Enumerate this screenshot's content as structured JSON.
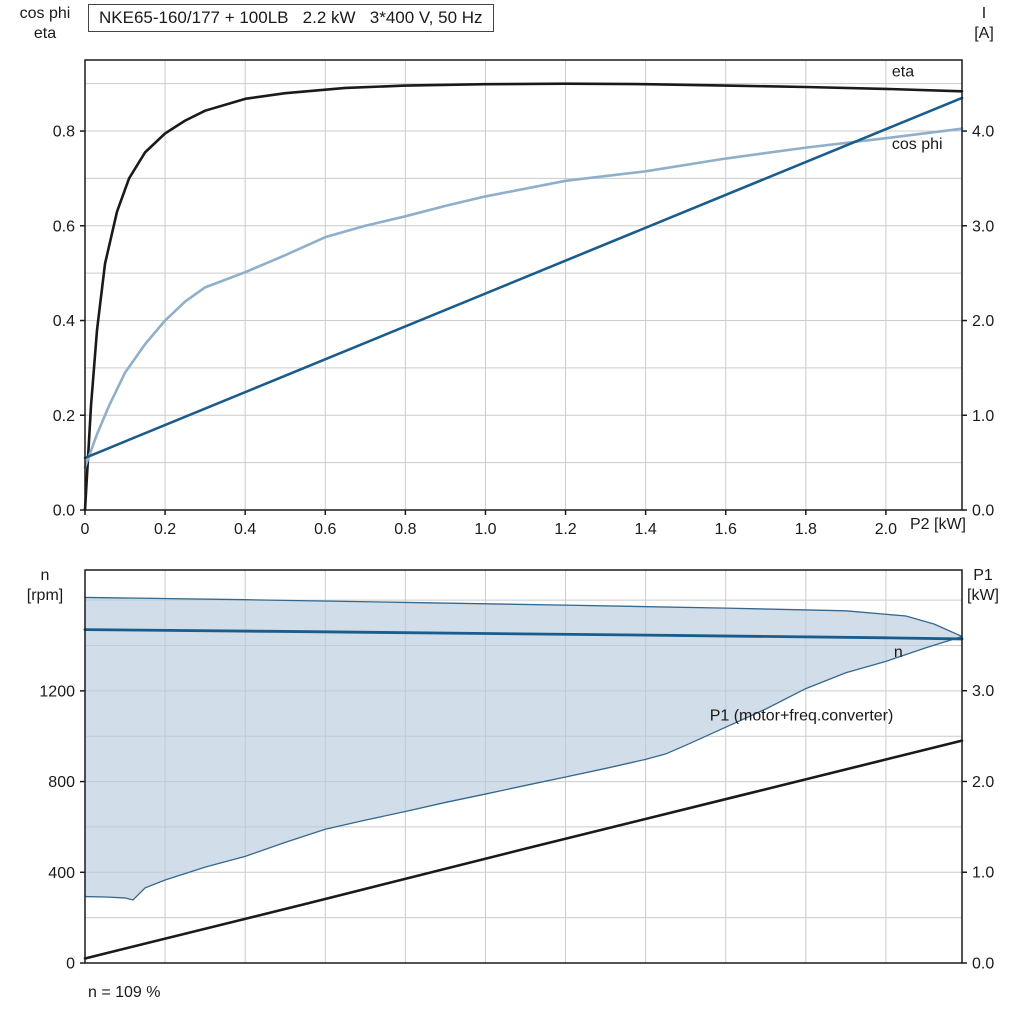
{
  "title": "NKE65-160/177 + 100LB   2.2 kW   3*400 V, 50 Hz",
  "colors": {
    "black": "#1a1a1a",
    "dark_blue": "#1a5c8c",
    "light_blue": "#8fafcb",
    "band_fill": "#b9cbdc",
    "band_edge": "#35688f",
    "grid": "#cccccc",
    "border": "#1a1a1a"
  },
  "chart_data": [
    {
      "type": "line",
      "panel": "top",
      "xlabel": "P2 [kW]",
      "y_left_label": "cos phi\neta",
      "y_right_label": "I\n[A]",
      "x_range": [
        0,
        2.19
      ],
      "y_left_range": [
        0,
        0.95
      ],
      "y_right_range": [
        0,
        4.75
      ],
      "x_grid": [
        0.2,
        0.4,
        0.6,
        0.8,
        1.0,
        1.2,
        1.4,
        1.6,
        1.8,
        2.0
      ],
      "y_grid_left": [
        0.1,
        0.2,
        0.3,
        0.4,
        0.5,
        0.6,
        0.7,
        0.8,
        0.9
      ],
      "x_ticks": [
        {
          "v": 0,
          "label": "0"
        },
        {
          "v": 0.2,
          "label": "0.2"
        },
        {
          "v": 0.4,
          "label": "0.4"
        },
        {
          "v": 0.6,
          "label": "0.6"
        },
        {
          "v": 0.8,
          "label": "0.8"
        },
        {
          "v": 1.0,
          "label": "1.0"
        },
        {
          "v": 1.2,
          "label": "1.2"
        },
        {
          "v": 1.4,
          "label": "1.4"
        },
        {
          "v": 1.6,
          "label": "1.6"
        },
        {
          "v": 1.8,
          "label": "1.8"
        },
        {
          "v": 2.0,
          "label": "2.0"
        }
      ],
      "y_left_ticks": [
        {
          "v": 0,
          "label": "0.0"
        },
        {
          "v": 0.2,
          "label": "0.2"
        },
        {
          "v": 0.4,
          "label": "0.4"
        },
        {
          "v": 0.6,
          "label": "0.6"
        },
        {
          "v": 0.8,
          "label": "0.8"
        }
      ],
      "y_right_ticks": [
        {
          "v": 0,
          "label": "0.0"
        },
        {
          "v": 1,
          "label": "1.0"
        },
        {
          "v": 2,
          "label": "2.0"
        },
        {
          "v": 3,
          "label": "3.0"
        },
        {
          "v": 4,
          "label": "4.0"
        }
      ],
      "series": [
        {
          "name": "eta",
          "axis": "left",
          "color": "#1a1a1a",
          "width": 2.6,
          "x": [
            0,
            0.015,
            0.03,
            0.05,
            0.08,
            0.11,
            0.15,
            0.2,
            0.25,
            0.3,
            0.4,
            0.5,
            0.65,
            0.8,
            1.0,
            1.2,
            1.4,
            1.6,
            1.8,
            2.0,
            2.19
          ],
          "y": [
            0,
            0.22,
            0.38,
            0.52,
            0.63,
            0.7,
            0.755,
            0.795,
            0.822,
            0.843,
            0.868,
            0.88,
            0.891,
            0.896,
            0.899,
            0.9,
            0.899,
            0.896,
            0.893,
            0.889,
            0.884
          ]
        },
        {
          "name": "cos-phi",
          "axis": "left",
          "color": "#8fafcb",
          "width": 2.6,
          "x": [
            0,
            0.03,
            0.06,
            0.1,
            0.15,
            0.2,
            0.25,
            0.3,
            0.4,
            0.5,
            0.6,
            0.7,
            0.8,
            0.9,
            1.0,
            1.2,
            1.4,
            1.6,
            1.8,
            2.0,
            2.19
          ],
          "y": [
            0.09,
            0.16,
            0.22,
            0.29,
            0.35,
            0.4,
            0.44,
            0.47,
            0.502,
            0.538,
            0.576,
            0.6,
            0.62,
            0.642,
            0.662,
            0.695,
            0.715,
            0.742,
            0.765,
            0.785,
            0.805
          ]
        },
        {
          "name": "current-I",
          "axis": "right",
          "color": "#1a5c8c",
          "width": 2.6,
          "x": [
            0,
            2.19
          ],
          "y": [
            0.55,
            4.35
          ]
        }
      ],
      "annotations": [
        {
          "text": "eta",
          "x": 2.015,
          "y": 0.915,
          "axis": "left",
          "anchor": "start",
          "color": "#1a1a1a"
        },
        {
          "text": "cos phi",
          "x": 2.015,
          "y": 0.762,
          "axis": "left",
          "anchor": "start",
          "color": "#8fafcb"
        }
      ]
    },
    {
      "type": "line",
      "panel": "bottom",
      "xlabel": "",
      "y_left_label": "n\n[rpm]",
      "y_right_label": "P1\n[kW]",
      "footnote": "n = 109 %",
      "x_range": [
        0,
        2.19
      ],
      "y_left_range": [
        0,
        1733
      ],
      "y_right_range": [
        0,
        4.33
      ],
      "x_grid": [
        0.2,
        0.4,
        0.6,
        0.8,
        1.0,
        1.2,
        1.4,
        1.6,
        1.8,
        2.0
      ],
      "y_grid_left": [
        200,
        400,
        600,
        800,
        1000,
        1200,
        1400,
        1600
      ],
      "x_ticks": [],
      "y_left_ticks": [
        {
          "v": 0,
          "label": "0"
        },
        {
          "v": 400,
          "label": "400"
        },
        {
          "v": 800,
          "label": "800"
        },
        {
          "v": 1200,
          "label": "1200"
        }
      ],
      "y_right_ticks": [
        {
          "v": 0,
          "label": "0.0"
        },
        {
          "v": 1,
          "label": "1.0"
        },
        {
          "v": 2,
          "label": "2.0"
        },
        {
          "v": 3,
          "label": "3.0"
        }
      ],
      "series": [
        {
          "name": "speed-control-range",
          "type": "band",
          "axis": "left",
          "fill": "#b9cbdc",
          "fill_opacity": 0.65,
          "edge_color": "#35688f",
          "edge_width": 1.3,
          "x": [
            0,
            0.4,
            0.8,
            1.2,
            1.6,
            1.9,
            2.05,
            2.12,
            2.19
          ],
          "y_upper": [
            1612,
            1602,
            1590,
            1578,
            1565,
            1553,
            1530,
            1495,
            1440
          ],
          "x_lower_note": "lower boundary uses x_lo",
          "x_lo": [
            0,
            0.05,
            0.1,
            0.12,
            0.15,
            0.2,
            0.3,
            0.4,
            0.5,
            0.6,
            0.7,
            0.8,
            0.9,
            1.0,
            1.1,
            1.2,
            1.3,
            1.4,
            1.45,
            1.5,
            1.6,
            1.7,
            1.8,
            1.9,
            2.0,
            2.1,
            2.19
          ],
          "y_lower": [
            293,
            291,
            287,
            278,
            331,
            366,
            423,
            470,
            532,
            590,
            630,
            668,
            708,
            745,
            783,
            820,
            858,
            898,
            922,
            960,
            1040,
            1120,
            1210,
            1280,
            1330,
            1390,
            1440
          ]
        },
        {
          "name": "n-speed",
          "axis": "left",
          "color": "#1a5c8c",
          "width": 2.8,
          "x": [
            0,
            0.5,
            1.0,
            1.5,
            2.0,
            2.19
          ],
          "y": [
            1470,
            1462,
            1453,
            1444,
            1434,
            1429
          ]
        },
        {
          "name": "P1-motor-freq-converter",
          "axis": "right",
          "color": "#1a1a1a",
          "width": 2.6,
          "x": [
            0,
            0.55,
            1.1,
            1.65,
            2.19
          ],
          "y": [
            0.05,
            0.65,
            1.26,
            1.86,
            2.45
          ]
        }
      ],
      "annotations": [
        {
          "text": "n",
          "x": 2.02,
          "y": 1350,
          "axis": "left",
          "anchor": "start",
          "color": "#1a5c8c"
        },
        {
          "text": "P1 (motor+freq.converter)",
          "x": 1.56,
          "y": 2.67,
          "axis": "right",
          "anchor": "start",
          "color": "#1a1a1a"
        }
      ]
    }
  ]
}
